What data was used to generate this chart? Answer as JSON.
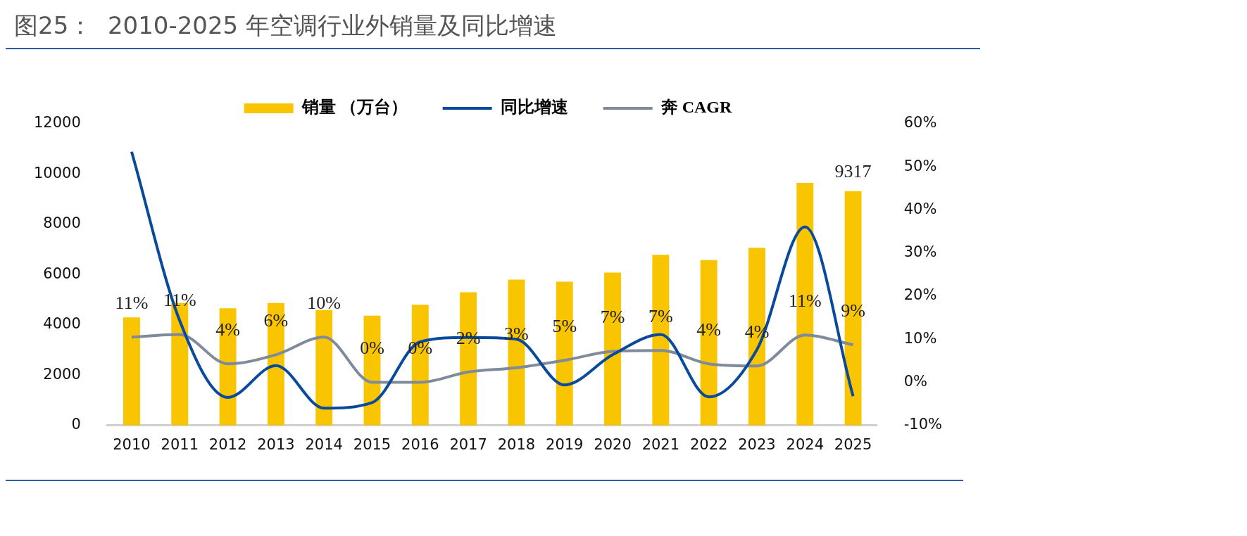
{
  "chart_data": {
    "type": "bar",
    "title": "图25：  2010-2025 年空调行业外销量及同比增速",
    "categories": [
      "2010",
      "2011",
      "2012",
      "2013",
      "2014",
      "2015",
      "2016",
      "2017",
      "2018",
      "2019",
      "2020",
      "2021",
      "2022",
      "2023",
      "2024",
      "2025"
    ],
    "series": [
      {
        "name": "销量 （万台）",
        "color": "#f9c400",
        "values": [
          4300,
          4870,
          4660,
          4870,
          4590,
          4370,
          4800,
          5300,
          5800,
          5720,
          6080,
          6790,
          6580,
          7070,
          9650,
          9317
        ],
        "value_labels": [
          null,
          null,
          null,
          null,
          null,
          null,
          null,
          null,
          null,
          null,
          null,
          null,
          null,
          null,
          null,
          "9317"
        ]
      },
      {
        "name": "同比增速",
        "type": "line",
        "axis": "y2",
        "color": "#0a4a9c",
        "values": [
          53.5,
          14.3,
          -3.5,
          3.9,
          -6.0,
          -4.7,
          9.4,
          10.4,
          10.0,
          -0.6,
          6.4,
          11.1,
          -3.4,
          7.6,
          36.1,
          -3.2
        ]
      },
      {
        "name": "奔 CAGR",
        "type": "line",
        "axis": "y2",
        "color": "#7f8a9a",
        "values": [
          10.5,
          11.1,
          4.3,
          6.4,
          10.5,
          0.0,
          0.0,
          2.4,
          3.4,
          5.1,
          7.2,
          7.4,
          4.3,
          3.8,
          11.0,
          8.7
        ],
        "value_labels": [
          "11%",
          "11%",
          "4%",
          "6%",
          "10%",
          "0%",
          "0%",
          "2%",
          "3%",
          "5%",
          "7%",
          "7%",
          "4%",
          "4%",
          "11%",
          "9%"
        ]
      }
    ],
    "ylim": [
      0,
      12000
    ],
    "yticks": [
      0,
      2000,
      4000,
      6000,
      8000,
      10000,
      12000
    ],
    "y2lim": [
      -10,
      60
    ],
    "y2ticks": [
      {
        "value": -10,
        "label": "-10%"
      },
      {
        "value": 0,
        "label": "0%"
      },
      {
        "value": 10,
        "label": "10%"
      },
      {
        "value": 20,
        "label": "20%"
      },
      {
        "value": 30,
        "label": "30%"
      },
      {
        "value": 40,
        "label": "40%"
      },
      {
        "value": 50,
        "label": "50%"
      },
      {
        "value": 60,
        "label": "60%"
      }
    ],
    "grid": false,
    "legend": "top",
    "marker": "none",
    "line_style": "solid"
  }
}
